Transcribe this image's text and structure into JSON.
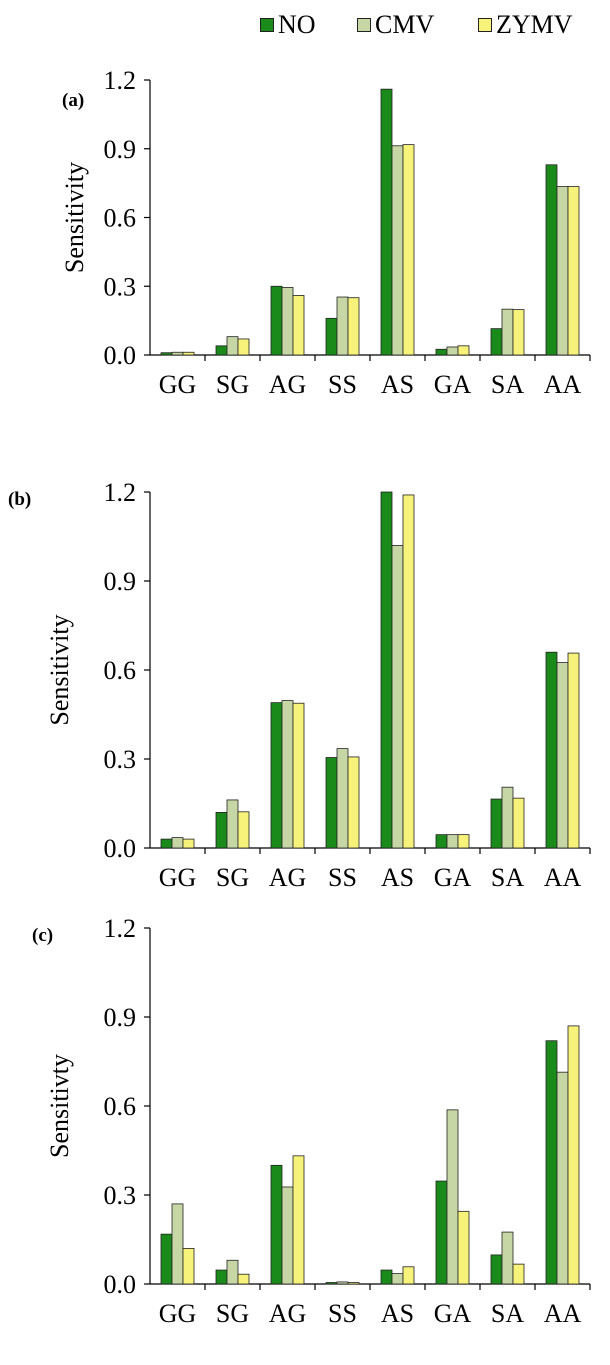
{
  "legend": [
    {
      "name": "NO",
      "color": "#1a8a1a"
    },
    {
      "name": "CMV",
      "color": "#c6d6a4"
    },
    {
      "name": "ZYMV",
      "color": "#f7f27a"
    }
  ],
  "chart_data": [
    {
      "type": "bar",
      "panel_label": "(a)",
      "ylabel": "Sensitivity",
      "ylim": [
        0,
        1.2
      ],
      "yticks": [
        "0.0",
        "0.3",
        "0.6",
        "0.9",
        "1.2"
      ],
      "categories": [
        "GG",
        "SG",
        "AG",
        "SS",
        "AS",
        "GA",
        "SA",
        "AA"
      ],
      "series": [
        {
          "name": "NO",
          "values": [
            0.01,
            0.04,
            0.3,
            0.16,
            1.16,
            0.025,
            0.115,
            0.83
          ]
        },
        {
          "name": "CMV",
          "values": [
            0.012,
            0.08,
            0.295,
            0.253,
            0.913,
            0.035,
            0.2,
            0.735
          ]
        },
        {
          "name": "ZYMV",
          "values": [
            0.012,
            0.07,
            0.26,
            0.25,
            0.918,
            0.04,
            0.198,
            0.735
          ]
        }
      ]
    },
    {
      "type": "bar",
      "panel_label": "(b)",
      "ylabel": "Sensitivity",
      "ylim": [
        0,
        1.2
      ],
      "yticks": [
        "0.0",
        "0.3",
        "0.6",
        "0.9",
        "1.2"
      ],
      "categories": [
        "GG",
        "SG",
        "AG",
        "SS",
        "AS",
        "GA",
        "SA",
        "AA"
      ],
      "series": [
        {
          "name": "NO",
          "values": [
            0.03,
            0.12,
            0.49,
            0.305,
            1.2,
            0.045,
            0.165,
            0.66
          ]
        },
        {
          "name": "CMV",
          "values": [
            0.035,
            0.162,
            0.497,
            0.335,
            1.02,
            0.045,
            0.205,
            0.625
          ]
        },
        {
          "name": "ZYMV",
          "values": [
            0.03,
            0.122,
            0.488,
            0.307,
            1.19,
            0.045,
            0.168,
            0.657
          ]
        }
      ]
    },
    {
      "type": "bar",
      "panel_label": "(c)",
      "ylabel": "Sensitivty",
      "ylim": [
        0,
        1.2
      ],
      "yticks": [
        "0.0",
        "0.3",
        "0.6",
        "0.9",
        "1.2"
      ],
      "categories": [
        "GG",
        "SG",
        "AG",
        "SS",
        "AS",
        "GA",
        "SA",
        "AA"
      ],
      "series": [
        {
          "name": "NO",
          "values": [
            0.168,
            0.047,
            0.4,
            0.005,
            0.047,
            0.347,
            0.098,
            0.82
          ]
        },
        {
          "name": "CMV",
          "values": [
            0.27,
            0.08,
            0.327,
            0.007,
            0.035,
            0.587,
            0.175,
            0.714
          ]
        },
        {
          "name": "ZYMV",
          "values": [
            0.12,
            0.033,
            0.432,
            0.005,
            0.058,
            0.245,
            0.067,
            0.87
          ]
        }
      ]
    }
  ]
}
